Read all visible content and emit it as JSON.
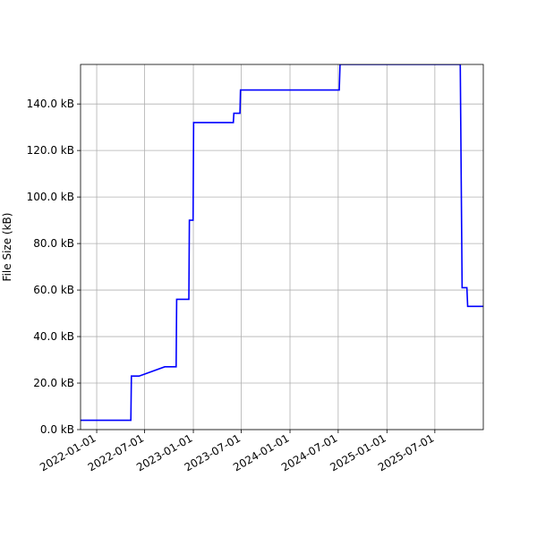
{
  "chart_data": {
    "type": "line",
    "title": "",
    "xlabel": "",
    "ylabel": "File Size (kB)",
    "y_unit": "kB",
    "grid": true,
    "x_type": "date",
    "xlim": [
      "2021-11-01",
      "2025-12-31"
    ],
    "ylim": [
      0,
      157
    ],
    "x_ticks": [
      "2022-01-01",
      "2022-07-01",
      "2023-01-01",
      "2023-07-01",
      "2024-01-01",
      "2024-07-01",
      "2025-01-01",
      "2025-07-01"
    ],
    "y_ticks": [
      0,
      20,
      40,
      60,
      80,
      100,
      120,
      140
    ],
    "y_tick_labels": [
      "0.0 kB",
      "20.0 kB",
      "40.0 kB",
      "60.0 kB",
      "80.0 kB",
      "100.0 kB",
      "120.0 kB",
      "140.0 kB"
    ],
    "series": [
      {
        "name": "",
        "color": "#0000ff",
        "points": [
          [
            "2021-11-01",
            4
          ],
          [
            "2022-05-10",
            4
          ],
          [
            "2022-05-12",
            23
          ],
          [
            "2022-06-10",
            23
          ],
          [
            "2022-09-15",
            27
          ],
          [
            "2022-10-28",
            27
          ],
          [
            "2022-10-30",
            56
          ],
          [
            "2022-12-15",
            56
          ],
          [
            "2022-12-17",
            90
          ],
          [
            "2022-12-31",
            90
          ],
          [
            "2023-01-02",
            132
          ],
          [
            "2023-06-01",
            132
          ],
          [
            "2023-06-03",
            136
          ],
          [
            "2023-06-26",
            136
          ],
          [
            "2023-06-28",
            146
          ],
          [
            "2024-07-05",
            146
          ],
          [
            "2024-07-08",
            157
          ],
          [
            "2025-10-05",
            157
          ],
          [
            "2025-10-12",
            61
          ],
          [
            "2025-10-30",
            61
          ],
          [
            "2025-11-02",
            53
          ],
          [
            "2025-12-31",
            53
          ]
        ]
      }
    ]
  }
}
